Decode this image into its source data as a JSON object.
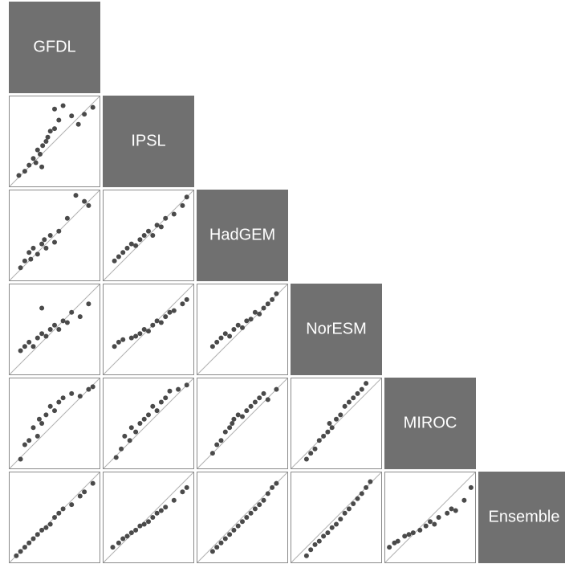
{
  "chart_data": {
    "type": "scatter_matrix",
    "variables": [
      "GFDL",
      "IPSL",
      "HadGEM",
      "NorESM",
      "MIROC",
      "Ensemble"
    ],
    "xlim": [
      0,
      1
    ],
    "ylim": [
      0,
      1
    ],
    "color": "#4a4a4a",
    "diagonal_color": "#707070",
    "reference_line_color": "#b0b0b0",
    "panels": [
      {
        "x": [
          0.08,
          0.15,
          0.2,
          0.25,
          0.28,
          0.3,
          0.33,
          0.36,
          0.4,
          0.42,
          0.45,
          0.5,
          0.55,
          0.6,
          0.7,
          0.78,
          0.85,
          0.95,
          0.5,
          0.35
        ],
        "y": [
          0.1,
          0.15,
          0.22,
          0.3,
          0.25,
          0.4,
          0.35,
          0.45,
          0.5,
          0.55,
          0.62,
          0.65,
          0.75,
          0.92,
          0.8,
          0.7,
          0.82,
          0.9,
          0.88,
          0.2
        ]
      },
      {
        "x": [
          0.1,
          0.15,
          0.2,
          0.22,
          0.25,
          0.3,
          0.35,
          0.38,
          0.4,
          0.45,
          0.5,
          0.55,
          0.65,
          0.85,
          0.9,
          0.75
        ],
        "y": [
          0.12,
          0.2,
          0.3,
          0.22,
          0.35,
          0.28,
          0.4,
          0.45,
          0.35,
          0.5,
          0.42,
          0.55,
          0.7,
          0.9,
          0.85,
          0.97
        ]
      },
      {
        "x": [
          0.1,
          0.15,
          0.2,
          0.25,
          0.3,
          0.35,
          0.4,
          0.45,
          0.5,
          0.55,
          0.6,
          0.65,
          0.7,
          0.8,
          0.9,
          0.95
        ],
        "y": [
          0.2,
          0.25,
          0.3,
          0.35,
          0.4,
          0.38,
          0.45,
          0.5,
          0.55,
          0.5,
          0.62,
          0.6,
          0.7,
          0.75,
          0.85,
          0.95
        ]
      },
      {
        "x": [
          0.1,
          0.15,
          0.2,
          0.25,
          0.3,
          0.35,
          0.4,
          0.45,
          0.5,
          0.55,
          0.6,
          0.65,
          0.7,
          0.8,
          0.9,
          0.35
        ],
        "y": [
          0.25,
          0.3,
          0.35,
          0.3,
          0.4,
          0.45,
          0.42,
          0.5,
          0.55,
          0.5,
          0.6,
          0.58,
          0.7,
          0.65,
          0.8,
          0.75
        ]
      },
      {
        "x": [
          0.1,
          0.15,
          0.2,
          0.3,
          0.35,
          0.4,
          0.45,
          0.5,
          0.55,
          0.6,
          0.65,
          0.7,
          0.75,
          0.8,
          0.9,
          0.95
        ],
        "y": [
          0.3,
          0.35,
          0.38,
          0.4,
          0.42,
          0.45,
          0.5,
          0.48,
          0.55,
          0.6,
          0.58,
          0.65,
          0.7,
          0.72,
          0.8,
          0.85
        ]
      },
      {
        "x": [
          0.15,
          0.2,
          0.25,
          0.3,
          0.35,
          0.4,
          0.45,
          0.5,
          0.55,
          0.6,
          0.65,
          0.7,
          0.75,
          0.8,
          0.85,
          0.9
        ],
        "y": [
          0.3,
          0.35,
          0.4,
          0.45,
          0.42,
          0.5,
          0.55,
          0.52,
          0.6,
          0.62,
          0.7,
          0.68,
          0.75,
          0.8,
          0.85,
          0.92
        ]
      },
      {
        "x": [
          0.1,
          0.15,
          0.2,
          0.25,
          0.3,
          0.32,
          0.35,
          0.4,
          0.45,
          0.5,
          0.55,
          0.6,
          0.7,
          0.8,
          0.9,
          0.95
        ],
        "y": [
          0.08,
          0.25,
          0.3,
          0.45,
          0.35,
          0.55,
          0.5,
          0.6,
          0.7,
          0.65,
          0.75,
          0.8,
          0.85,
          0.82,
          0.9,
          0.93
        ]
      },
      {
        "x": [
          0.12,
          0.18,
          0.22,
          0.28,
          0.3,
          0.35,
          0.4,
          0.45,
          0.5,
          0.55,
          0.6,
          0.65,
          0.7,
          0.75,
          0.85,
          0.95
        ],
        "y": [
          0.1,
          0.2,
          0.35,
          0.3,
          0.45,
          0.4,
          0.5,
          0.55,
          0.6,
          0.7,
          0.65,
          0.75,
          0.8,
          0.88,
          0.9,
          0.95
        ]
      },
      {
        "x": [
          0.15,
          0.2,
          0.25,
          0.3,
          0.35,
          0.38,
          0.4,
          0.45,
          0.5,
          0.55,
          0.6,
          0.65,
          0.7,
          0.75,
          0.8,
          0.9
        ],
        "y": [
          0.15,
          0.25,
          0.3,
          0.4,
          0.45,
          0.5,
          0.55,
          0.6,
          0.58,
          0.65,
          0.7,
          0.75,
          0.8,
          0.85,
          0.78,
          0.9
        ]
      },
      {
        "x": [
          0.15,
          0.2,
          0.25,
          0.3,
          0.35,
          0.4,
          0.42,
          0.45,
          0.5,
          0.55,
          0.6,
          0.65,
          0.7,
          0.75,
          0.8,
          0.85
        ],
        "y": [
          0.08,
          0.15,
          0.2,
          0.3,
          0.35,
          0.4,
          0.5,
          0.45,
          0.55,
          0.6,
          0.7,
          0.75,
          0.8,
          0.85,
          0.9,
          0.97
        ]
      },
      {
        "x": [
          0.05,
          0.1,
          0.15,
          0.2,
          0.25,
          0.3,
          0.35,
          0.4,
          0.45,
          0.5,
          0.55,
          0.6,
          0.7,
          0.8,
          0.85,
          0.95
        ],
        "y": [
          0.05,
          0.1,
          0.15,
          0.2,
          0.25,
          0.3,
          0.35,
          0.38,
          0.42,
          0.5,
          0.55,
          0.6,
          0.65,
          0.75,
          0.8,
          0.9
        ]
      },
      {
        "x": [
          0.08,
          0.15,
          0.2,
          0.25,
          0.3,
          0.35,
          0.4,
          0.45,
          0.5,
          0.55,
          0.6,
          0.65,
          0.7,
          0.8,
          0.9,
          0.95
        ],
        "y": [
          0.15,
          0.2,
          0.25,
          0.28,
          0.32,
          0.35,
          0.4,
          0.42,
          0.45,
          0.5,
          0.55,
          0.58,
          0.62,
          0.7,
          0.8,
          0.85
        ]
      },
      {
        "x": [
          0.15,
          0.2,
          0.25,
          0.3,
          0.35,
          0.4,
          0.45,
          0.5,
          0.55,
          0.6,
          0.65,
          0.7,
          0.75,
          0.8,
          0.85,
          0.9
        ],
        "y": [
          0.1,
          0.15,
          0.2,
          0.25,
          0.3,
          0.35,
          0.4,
          0.45,
          0.5,
          0.55,
          0.6,
          0.65,
          0.7,
          0.78,
          0.85,
          0.9
        ]
      },
      {
        "x": [
          0.15,
          0.2,
          0.25,
          0.3,
          0.35,
          0.4,
          0.45,
          0.5,
          0.55,
          0.6,
          0.65,
          0.7,
          0.75,
          0.8,
          0.85,
          0.9
        ],
        "y": [
          0.05,
          0.12,
          0.18,
          0.22,
          0.28,
          0.32,
          0.38,
          0.42,
          0.48,
          0.55,
          0.6,
          0.66,
          0.72,
          0.78,
          0.85,
          0.92
        ]
      },
      {
        "x": [
          0.02,
          0.08,
          0.12,
          0.2,
          0.25,
          0.3,
          0.38,
          0.45,
          0.5,
          0.55,
          0.6,
          0.7,
          0.75,
          0.8,
          0.9,
          0.98
        ],
        "y": [
          0.15,
          0.2,
          0.22,
          0.28,
          0.3,
          0.32,
          0.35,
          0.4,
          0.45,
          0.42,
          0.5,
          0.55,
          0.6,
          0.58,
          0.7,
          0.85
        ]
      }
    ]
  }
}
